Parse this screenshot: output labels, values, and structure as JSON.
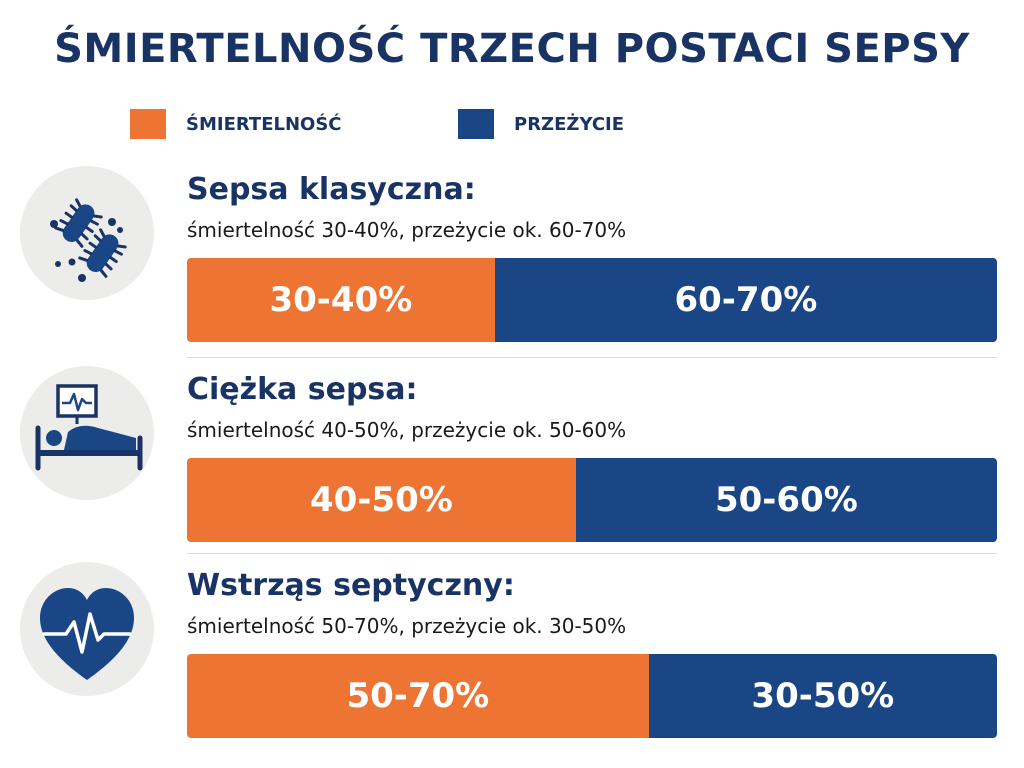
{
  "title": "ŚMIERTELNOŚĆ TRZECH POSTACI SEPSY",
  "legend": [
    {
      "label": "ŚMIERTELNOŚĆ",
      "color": "#ee7433"
    },
    {
      "label": "PRZEŻYCIE",
      "color": "#1a4686"
    }
  ],
  "sections": [
    {
      "title": "Sepsa klasyczna:",
      "description": "śmiertelność 30-40%, przeżycie ok. 60-70%",
      "mortality_label": "30-40%",
      "survival_label": "60-70%",
      "icon": "bacteria-icon"
    },
    {
      "title": "Ciężka sepsa:",
      "description": "śmiertelność 40-50%, przeżycie ok. 50-60%",
      "mortality_label": "40-50%",
      "survival_label": "50-60%",
      "icon": "hospital-bed-icon"
    },
    {
      "title": "Wstrząs septyczny:",
      "description": "śmiertelność 50-70%, przeżycie ok. 30-50%",
      "mortality_label": "50-70%",
      "survival_label": "30-50%",
      "icon": "heart-pulse-icon"
    }
  ],
  "chart_data": {
    "type": "bar",
    "title": "ŚMIERTELNOŚĆ TRZECH POSTACI SEPSY",
    "categories": [
      "Sepsa klasyczna",
      "Ciężka sepsa",
      "Wstrząs septyczny"
    ],
    "series": [
      {
        "name": "ŚMIERTELNOŚĆ",
        "values": [
          38,
          48,
          57
        ],
        "labels": [
          "30-40%",
          "40-50%",
          "50-70%"
        ]
      },
      {
        "name": "PRZEŻYCIE",
        "values": [
          62,
          52,
          43
        ],
        "labels": [
          "60-70%",
          "50-60%",
          "30-50%"
        ]
      }
    ],
    "stacked": true,
    "orientation": "horizontal",
    "xlim": [
      0,
      100
    ],
    "colors": {
      "mortality": "#ee7433",
      "survival": "#1a4686"
    }
  }
}
